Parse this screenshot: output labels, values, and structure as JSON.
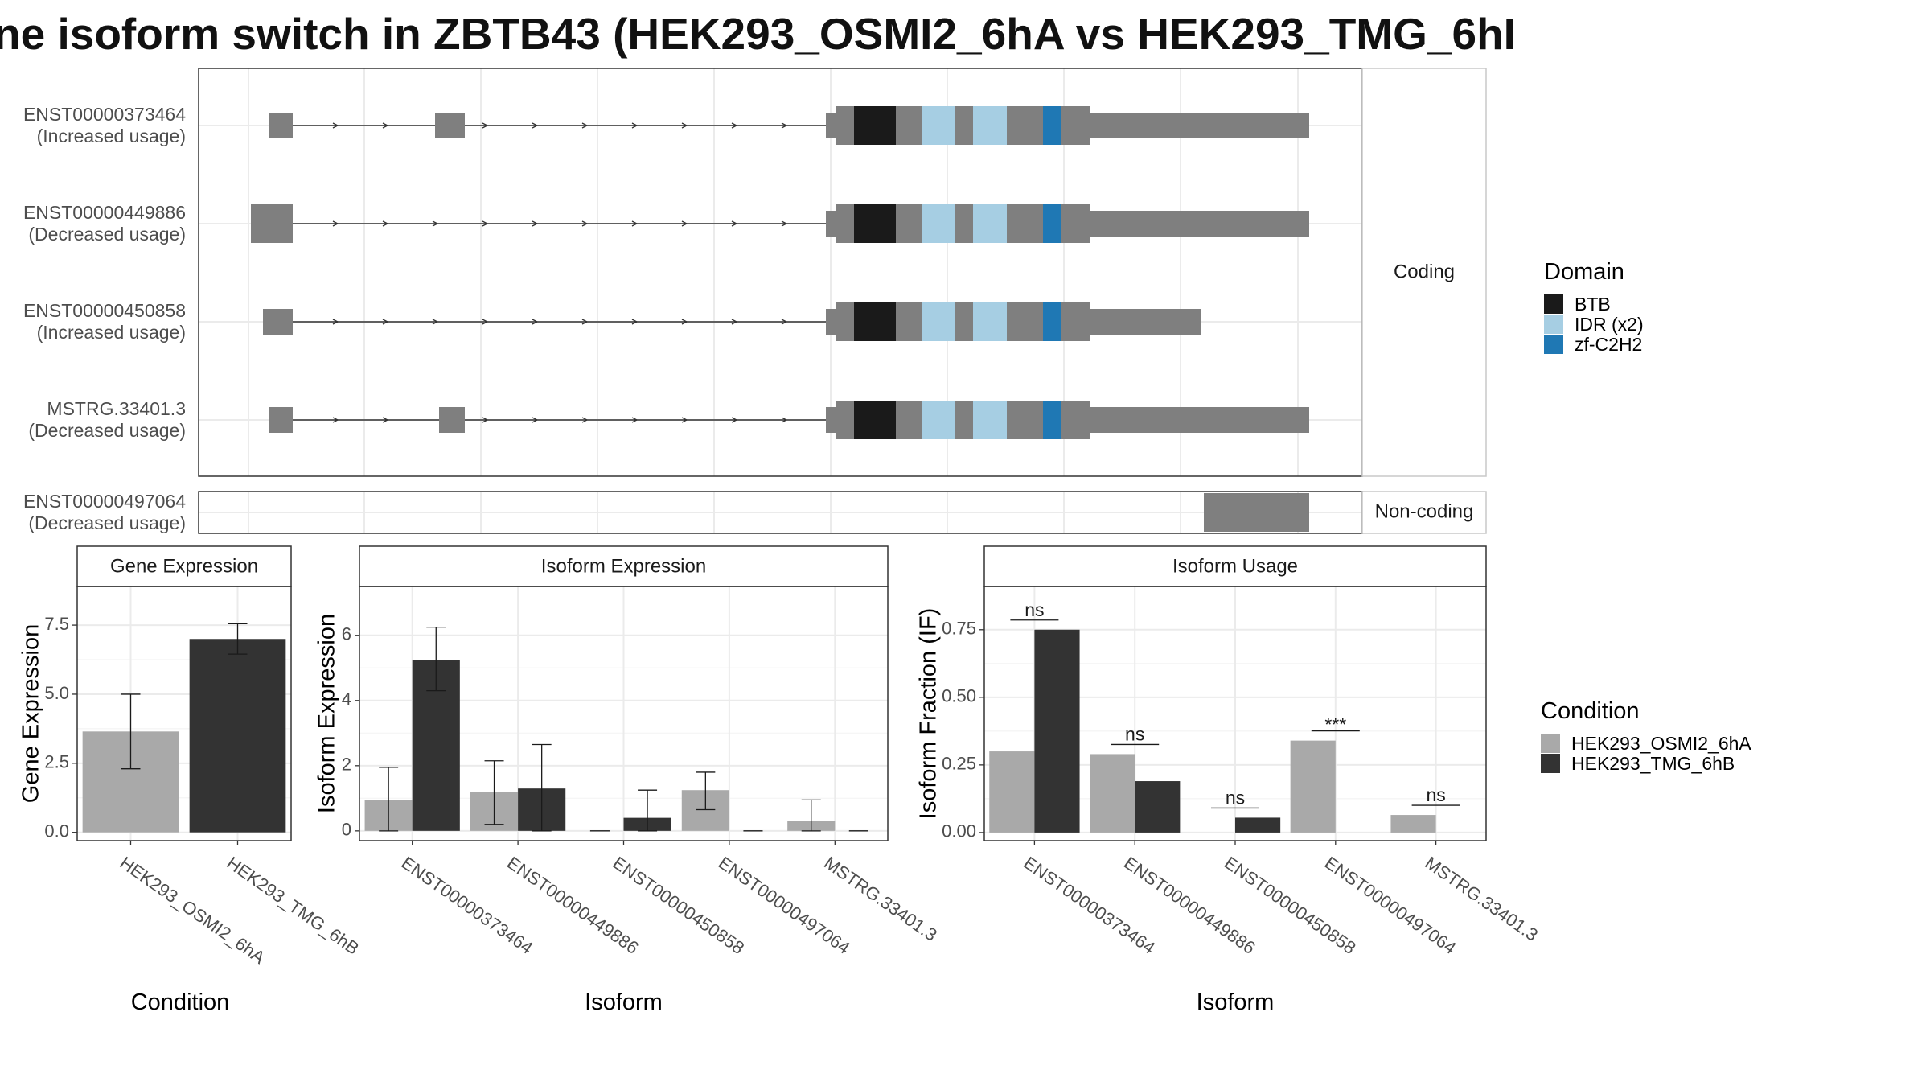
{
  "title": "ne isoform switch in ZBTB43 (HEK293_OSMI2_6hA vs HEK293_TMG_6hI",
  "colors": {
    "exon": "#7f7f7f",
    "BTB": "#1a1a1a",
    "IDR (x2)": "#a6cee3",
    "zf-C2H2": "#1f78b4",
    "condition_a": "#a9a9a9",
    "condition_b": "#333333",
    "grid": "#ebebeb",
    "panel_border": "#333333"
  },
  "structure": {
    "facets": [
      "Coding",
      "Non-coding"
    ],
    "transcripts": [
      {
        "id": "ENST00000373464",
        "status": "(Increased usage)",
        "facet": "Coding"
      },
      {
        "id": "ENST00000449886",
        "status": "(Decreased usage)",
        "facet": "Coding"
      },
      {
        "id": "ENST00000450858",
        "status": "(Increased usage)",
        "facet": "Coding"
      },
      {
        "id": "MSTRG.33401.3",
        "status": "(Decreased usage)",
        "facet": "Coding"
      },
      {
        "id": "ENST00000497064",
        "status": "(Decreased usage)",
        "facet": "Non-coding"
      }
    ]
  },
  "domain_legend": {
    "title": "Domain",
    "items": [
      "BTB",
      "IDR (x2)",
      "zf-C2H2"
    ]
  },
  "condition_legend": {
    "title": "Condition",
    "items": [
      "HEK293_OSMI2_6hA",
      "HEK293_TMG_6hB"
    ]
  },
  "chart_data": [
    {
      "type": "bar",
      "title": "Gene Expression",
      "xlabel": "Condition",
      "ylabel": "Gene Expression",
      "ylim": [
        -0.3,
        8.9
      ],
      "yticks": [
        0.0,
        2.5,
        5.0,
        7.5
      ],
      "ytick_labels": [
        "0.0",
        "2.5",
        "5.0",
        "7.5"
      ],
      "categories": [
        "HEK293_OSMI2_6hA",
        "HEK293_TMG_6hB"
      ],
      "values": [
        3.65,
        7.0
      ],
      "error_low": [
        2.3,
        6.45
      ],
      "error_high": [
        5.0,
        7.55
      ]
    },
    {
      "type": "bar",
      "title": "Isoform Expression",
      "xlabel": "Isoform",
      "ylabel": "Isoform Expression",
      "ylim": [
        -0.3,
        7.5
      ],
      "yticks": [
        0,
        2,
        4,
        6
      ],
      "ytick_labels": [
        "0",
        "2",
        "4",
        "6"
      ],
      "categories": [
        "ENST00000373464",
        "ENST00000449886",
        "ENST00000450858",
        "ENST00000497064",
        "MSTRG.33401.3"
      ],
      "series": [
        {
          "name": "HEK293_OSMI2_6hA",
          "values": [
            0.95,
            1.2,
            0.0,
            1.25,
            0.3
          ],
          "error_low": [
            0.0,
            0.2,
            0.0,
            0.65,
            0.0
          ],
          "error_high": [
            1.95,
            2.15,
            0.0,
            1.8,
            0.95
          ]
        },
        {
          "name": "HEK293_TMG_6hB",
          "values": [
            5.25,
            1.3,
            0.4,
            0.0,
            0.0
          ],
          "error_low": [
            4.3,
            0.0,
            0.0,
            0.0,
            0.0
          ],
          "error_high": [
            6.25,
            2.65,
            1.25,
            0.0,
            0.0
          ]
        }
      ]
    },
    {
      "type": "bar",
      "title": "Isoform Usage",
      "xlabel": "Isoform",
      "ylabel": "Isoform Fraction (IF)",
      "ylim": [
        -0.03,
        0.91
      ],
      "yticks": [
        0.0,
        0.25,
        0.5,
        0.75
      ],
      "ytick_labels": [
        "0.00",
        "0.25",
        "0.50",
        "0.75"
      ],
      "categories": [
        "ENST00000373464",
        "ENST00000449886",
        "ENST00000450858",
        "ENST00000497064",
        "MSTRG.33401.3"
      ],
      "series": [
        {
          "name": "HEK293_OSMI2_6hA",
          "values": [
            0.3,
            0.29,
            0.0,
            0.34,
            0.065
          ]
        },
        {
          "name": "HEK293_TMG_6hB",
          "values": [
            0.75,
            0.19,
            0.055,
            0.0,
            0.0
          ]
        }
      ],
      "significance": [
        "ns",
        "ns",
        "ns",
        "***",
        "ns"
      ]
    }
  ]
}
